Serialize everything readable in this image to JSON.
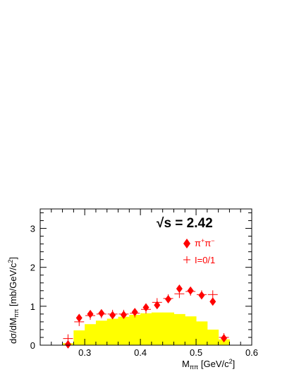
{
  "chart_data": {
    "type": "bar",
    "xlabel": {
      "main": "M",
      "sub": "ππ",
      "unit": " [GeV/c",
      "sup": "2",
      "close": "]"
    },
    "ylabel": {
      "pre": "dσ/dM",
      "sub": "ππ",
      "unit": " [mb/GeV/c",
      "sup": "2",
      "close": "]"
    },
    "energy_label": {
      "root": "√",
      "text": "s = 2.42"
    },
    "xlim": [
      0.22,
      0.6
    ],
    "ylim": [
      0,
      3.5
    ],
    "x_ticks": [
      {
        "value": 0.3,
        "label": "0.3"
      },
      {
        "value": 0.4,
        "label": "0.4"
      },
      {
        "value": 0.5,
        "label": "0.5"
      },
      {
        "value": 0.6,
        "label": "0.6"
      }
    ],
    "y_ticks": [
      {
        "value": 0,
        "label": "0"
      },
      {
        "value": 1,
        "label": "1"
      },
      {
        "value": 2,
        "label": "2"
      },
      {
        "value": 3,
        "label": "3"
      }
    ],
    "legend": [
      {
        "marker": "diamond",
        "label": "π",
        "sup": "+",
        "label2": "π",
        "sup2": "−"
      },
      {
        "marker": "cross",
        "label": "I=0/1"
      }
    ],
    "histogram": {
      "color": "#ffff00",
      "bin_edges": [
        0.26,
        0.28,
        0.3,
        0.32,
        0.34,
        0.36,
        0.38,
        0.4,
        0.42,
        0.44,
        0.46,
        0.48,
        0.5,
        0.52,
        0.54,
        0.56
      ],
      "values": [
        0.05,
        0.38,
        0.54,
        0.63,
        0.68,
        0.73,
        0.78,
        0.82,
        0.84,
        0.84,
        0.8,
        0.74,
        0.61,
        0.4,
        0.15
      ]
    },
    "series": [
      {
        "name": "π+π−",
        "marker": "diamond",
        "color": "#ff0000",
        "x": [
          0.27,
          0.29,
          0.31,
          0.33,
          0.35,
          0.37,
          0.39,
          0.41,
          0.43,
          0.45,
          0.47,
          0.49,
          0.51,
          0.53,
          0.55
        ],
        "y": [
          0.02,
          0.7,
          0.8,
          0.82,
          0.77,
          0.78,
          0.85,
          0.97,
          1.03,
          1.18,
          1.45,
          1.4,
          1.28,
          1.12,
          0.18
        ]
      },
      {
        "name": "I=0/1",
        "marker": "cross",
        "color": "#ff0000",
        "x": [
          0.27,
          0.29,
          0.31,
          0.33,
          0.35,
          0.37,
          0.39,
          0.41,
          0.43,
          0.45,
          0.47,
          0.49,
          0.51,
          0.53,
          0.55
        ],
        "y": [
          0.17,
          0.6,
          0.76,
          0.8,
          0.8,
          0.8,
          0.82,
          0.92,
          1.1,
          1.2,
          1.32,
          1.38,
          1.3,
          1.3,
          0.2
        ]
      }
    ]
  }
}
